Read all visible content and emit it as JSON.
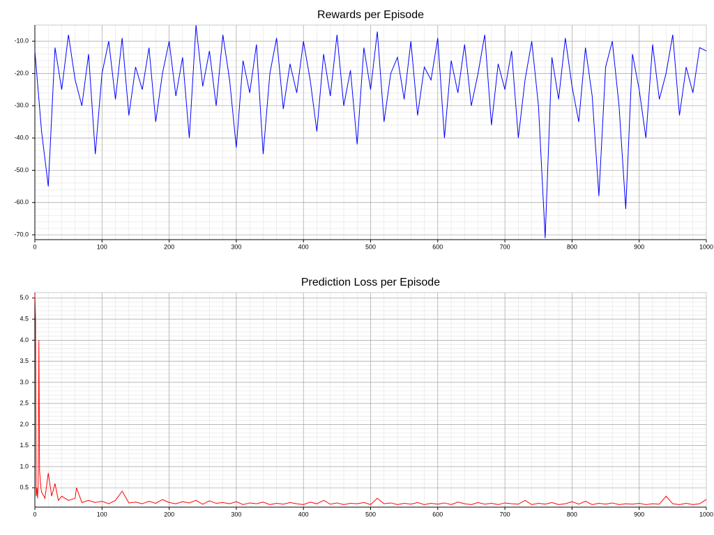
{
  "chart_data": [
    {
      "type": "line",
      "title": "Rewards per Episode",
      "color": "#0000ff",
      "grid": true,
      "x": [
        0,
        10,
        20,
        30,
        40,
        50,
        60,
        70,
        80,
        90,
        100,
        110,
        120,
        130,
        140,
        150,
        160,
        170,
        180,
        190,
        200,
        210,
        220,
        230,
        240,
        250,
        260,
        270,
        280,
        290,
        300,
        310,
        320,
        330,
        340,
        350,
        360,
        370,
        380,
        390,
        400,
        410,
        420,
        430,
        440,
        450,
        460,
        470,
        480,
        490,
        500,
        510,
        520,
        530,
        540,
        550,
        560,
        570,
        580,
        590,
        600,
        610,
        620,
        630,
        640,
        650,
        660,
        670,
        680,
        690,
        700,
        710,
        720,
        730,
        740,
        750,
        760,
        770,
        780,
        790,
        800,
        810,
        820,
        830,
        840,
        850,
        860,
        870,
        880,
        890,
        900,
        910,
        920,
        930,
        940,
        950,
        960,
        970,
        980,
        990,
        1000
      ],
      "values": [
        -13,
        -38,
        -55,
        -12,
        -25,
        -8,
        -22,
        -30,
        -14,
        -45,
        -20,
        -10,
        -28,
        -9,
        -33,
        -18,
        -25,
        -12,
        -35,
        -20,
        -10,
        -27,
        -15,
        -40,
        -5,
        -24,
        -13,
        -30,
        -8,
        -22,
        -43,
        -16,
        -26,
        -11,
        -45,
        -20,
        -9,
        -31,
        -17,
        -26,
        -10,
        -22,
        -38,
        -14,
        -27,
        -8,
        -30,
        -19,
        -42,
        -12,
        -25,
        -7,
        -35,
        -20,
        -15,
        -28,
        -10,
        -33,
        -18,
        -22,
        -9,
        -40,
        -16,
        -26,
        -11,
        -30,
        -20,
        -8,
        -36,
        -17,
        -25,
        -13,
        -40,
        -22,
        -10,
        -30,
        -71,
        -15,
        -28,
        -9,
        -24,
        -35,
        -12,
        -27,
        -58,
        -18,
        -10,
        -30,
        -62,
        -14,
        -25,
        -40,
        -11,
        -28,
        -20,
        -8,
        -33,
        -18,
        -26,
        -12,
        -13
      ],
      "xlim": [
        0,
        1000
      ],
      "xticks": [
        0,
        100,
        200,
        300,
        400,
        500,
        600,
        700,
        800,
        900,
        1000
      ],
      "ylim": [
        -71.5,
        -5
      ],
      "yticks": [
        {
          "value": -70,
          "label": "-70.0"
        },
        {
          "value": -60,
          "label": "-60.0"
        },
        {
          "value": -50,
          "label": "-50.0"
        },
        {
          "value": -40,
          "label": "-40.0"
        },
        {
          "value": -30,
          "label": "-30.0"
        },
        {
          "value": -20,
          "label": "-20.0"
        },
        {
          "value": -10,
          "label": "-10.0"
        }
      ]
    },
    {
      "type": "line",
      "title": "Prediction Loss per Episode",
      "color": "#ff0000",
      "grid": true,
      "x": [
        0,
        1,
        2,
        3,
        4,
        5,
        6,
        7,
        8,
        9,
        10,
        15,
        20,
        25,
        30,
        35,
        40,
        50,
        60,
        62,
        70,
        80,
        90,
        100,
        110,
        120,
        130,
        140,
        150,
        160,
        170,
        180,
        190,
        200,
        210,
        220,
        230,
        240,
        250,
        260,
        270,
        280,
        290,
        300,
        310,
        320,
        330,
        340,
        350,
        360,
        370,
        380,
        390,
        400,
        410,
        420,
        430,
        440,
        450,
        460,
        470,
        480,
        490,
        500,
        510,
        520,
        530,
        540,
        550,
        560,
        570,
        580,
        590,
        600,
        610,
        620,
        630,
        640,
        650,
        660,
        670,
        680,
        690,
        700,
        710,
        720,
        730,
        740,
        750,
        760,
        770,
        780,
        790,
        800,
        810,
        820,
        830,
        840,
        850,
        860,
        870,
        880,
        890,
        900,
        910,
        920,
        930,
        940,
        950,
        960,
        970,
        980,
        990,
        1000
      ],
      "values": [
        5.1,
        4.5,
        0.3,
        0.5,
        0.25,
        0.6,
        4.0,
        0.9,
        0.7,
        0.5,
        0.4,
        0.25,
        0.85,
        0.3,
        0.6,
        0.2,
        0.3,
        0.2,
        0.25,
        0.5,
        0.15,
        0.2,
        0.15,
        0.18,
        0.12,
        0.2,
        0.42,
        0.14,
        0.16,
        0.12,
        0.18,
        0.13,
        0.22,
        0.15,
        0.12,
        0.17,
        0.14,
        0.2,
        0.11,
        0.19,
        0.13,
        0.15,
        0.12,
        0.17,
        0.1,
        0.14,
        0.12,
        0.16,
        0.1,
        0.13,
        0.11,
        0.15,
        0.12,
        0.1,
        0.16,
        0.12,
        0.2,
        0.11,
        0.14,
        0.1,
        0.13,
        0.12,
        0.15,
        0.1,
        0.25,
        0.12,
        0.14,
        0.1,
        0.13,
        0.11,
        0.15,
        0.1,
        0.13,
        0.11,
        0.14,
        0.1,
        0.16,
        0.12,
        0.1,
        0.15,
        0.11,
        0.13,
        0.1,
        0.14,
        0.12,
        0.11,
        0.2,
        0.1,
        0.13,
        0.11,
        0.15,
        0.1,
        0.12,
        0.17,
        0.11,
        0.18,
        0.1,
        0.13,
        0.11,
        0.14,
        0.1,
        0.12,
        0.11,
        0.13,
        0.1,
        0.12,
        0.11,
        0.3,
        0.12,
        0.1,
        0.13,
        0.1,
        0.12,
        0.22
      ],
      "xlim": [
        0,
        1000
      ],
      "xticks": [
        0,
        100,
        200,
        300,
        400,
        500,
        600,
        700,
        800,
        900,
        1000
      ],
      "ylim": [
        0.04,
        5.13
      ],
      "yticks": [
        0.5,
        {
          "value": 1,
          "label": "1.0"
        },
        1.5,
        {
          "value": 2,
          "label": "2.0"
        },
        2.5,
        {
          "value": 3,
          "label": "3.0"
        },
        3.5,
        {
          "value": 4,
          "label": "4.0"
        },
        4.5,
        {
          "value": 5,
          "label": "5.0"
        }
      ]
    }
  ]
}
